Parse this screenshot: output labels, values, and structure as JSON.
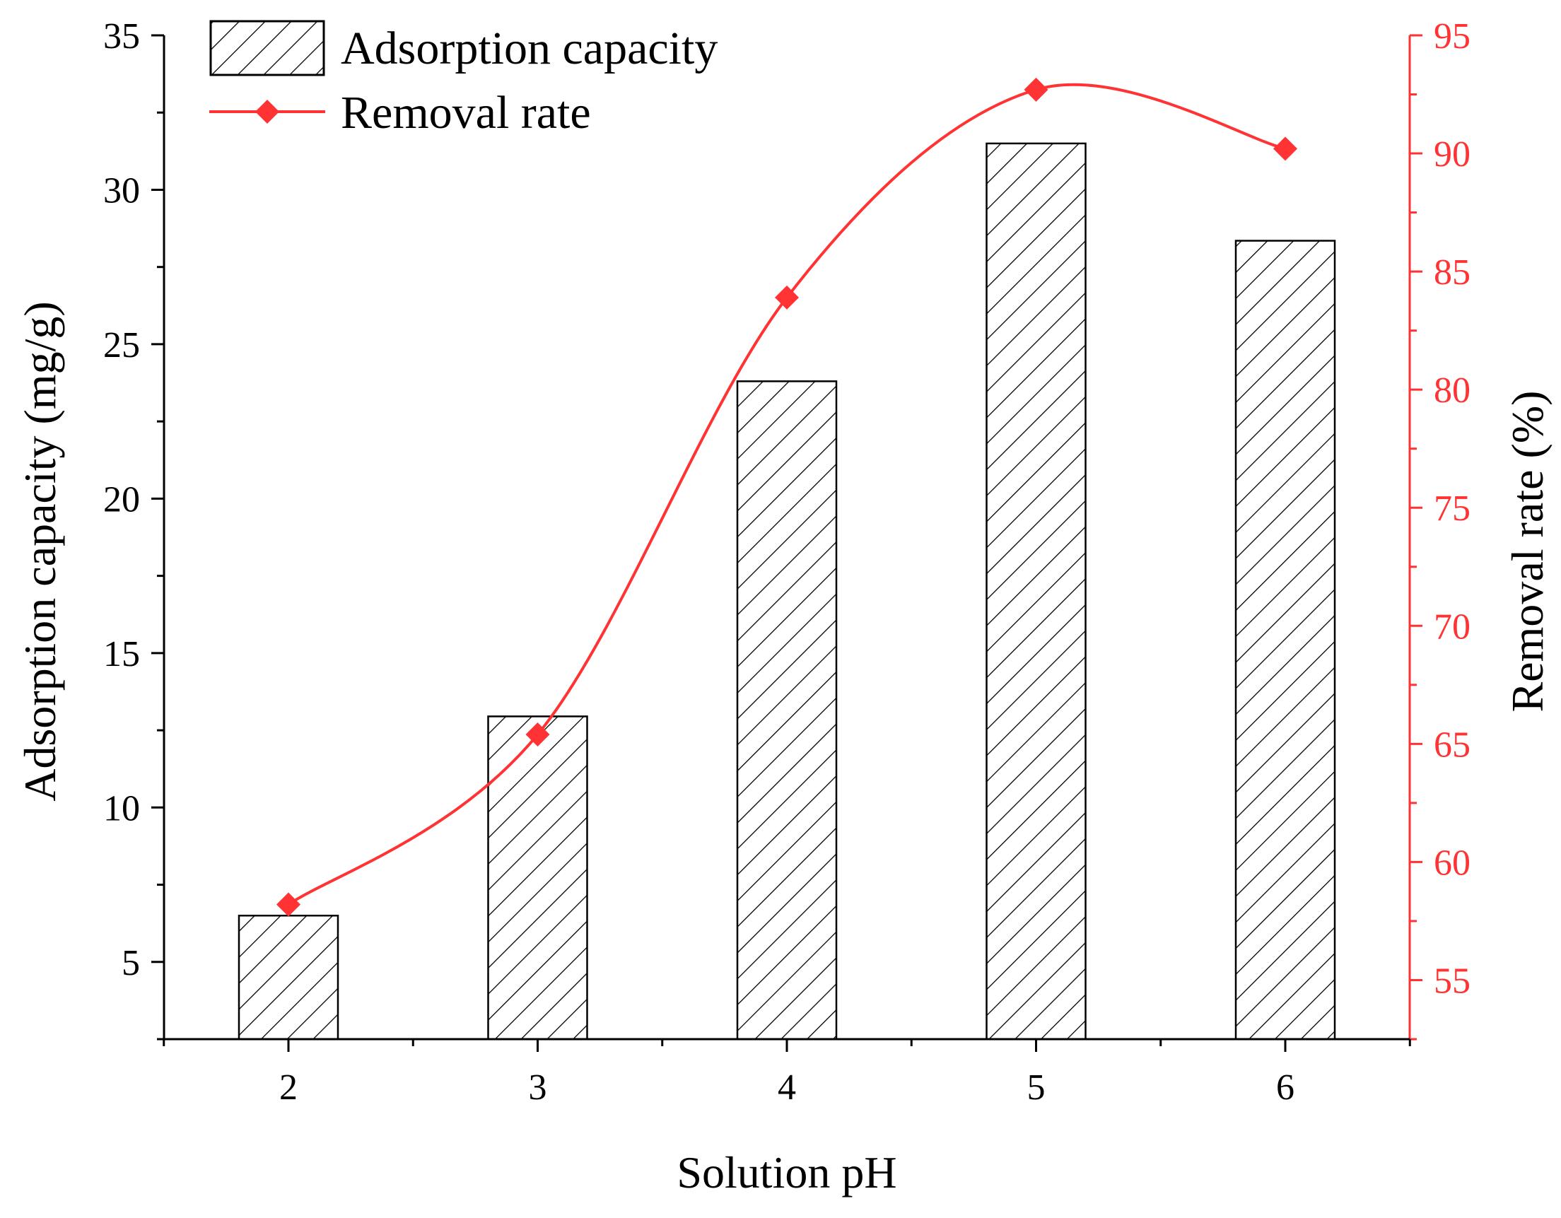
{
  "chart_data": {
    "type": "bar",
    "title": "",
    "xlabel": "Solution pH",
    "categories": [
      "2",
      "3",
      "4",
      "5",
      "6"
    ],
    "series": [
      {
        "name": "Adsorption capacity",
        "type": "bar",
        "axis": "left",
        "values": [
          6.5,
          12.95,
          23.8,
          31.5,
          28.35
        ],
        "fill": "hatched",
        "color": "#000000"
      },
      {
        "name": "Removal rate",
        "type": "line",
        "axis": "right",
        "values": [
          58.2,
          65.4,
          83.9,
          92.7,
          90.2
        ],
        "marker": "diamond",
        "smooth": true,
        "color": "#ff3333"
      }
    ],
    "y_left": {
      "label": "Adsorption capacity (mg/g)",
      "ylim": [
        2.5,
        35
      ],
      "ticks": [
        5,
        10,
        15,
        20,
        25,
        30,
        35
      ],
      "color": "#000000"
    },
    "y_right": {
      "label": "Removal rate (%)",
      "ylim": [
        52.5,
        95
      ],
      "ticks": [
        55,
        60,
        65,
        70,
        75,
        80,
        85,
        90,
        95
      ],
      "color": "#ff3333"
    },
    "legend": {
      "position": "top-left",
      "entries": [
        "Adsorption capacity",
        "Removal rate"
      ]
    },
    "grid": false
  }
}
